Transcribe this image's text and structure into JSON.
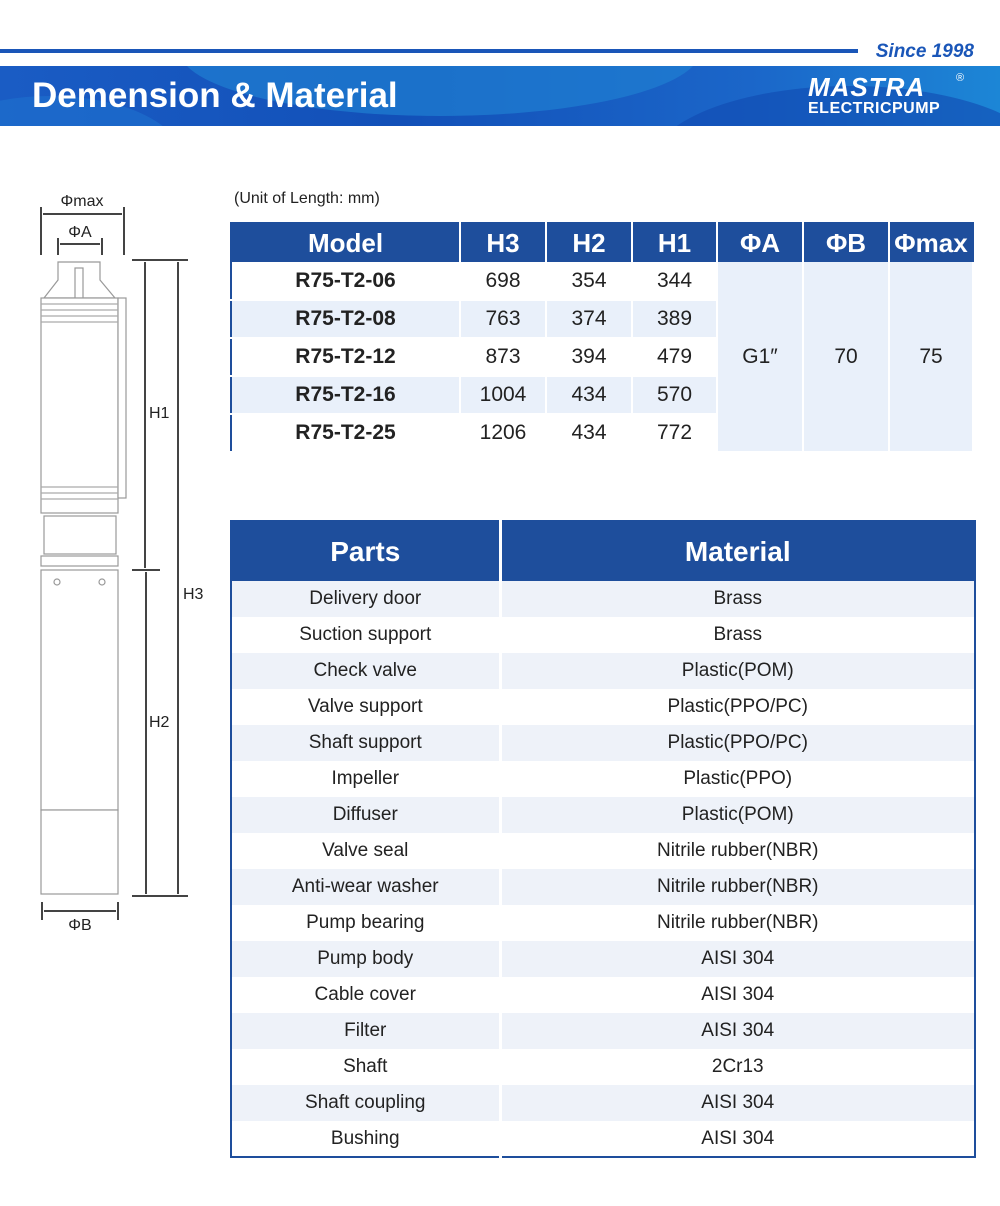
{
  "header": {
    "since": "Since 1998",
    "title": "Demension & Material",
    "brand_mark": "MASTRA",
    "brand_sub": "ELECTRICPUMP",
    "brand_reg": "®",
    "accent": "#1e4e9c"
  },
  "drawing": {
    "phi_max": "Φmax",
    "phi_a": "ΦA",
    "phi_b": "ΦB",
    "h1": "H1",
    "h2": "H2",
    "h3": "H3"
  },
  "dimensions": {
    "unit_note": "(Unit of Length: mm)",
    "headers": [
      "Model",
      "H3",
      "H2",
      "H1",
      "ΦA",
      "ΦB",
      "Φmax"
    ],
    "rows": [
      {
        "model": "R75-T2-06",
        "h3": "698",
        "h2": "354",
        "h1": "344"
      },
      {
        "model": "R75-T2-08",
        "h3": "763",
        "h2": "374",
        "h1": "389"
      },
      {
        "model": "R75-T2-12",
        "h3": "873",
        "h2": "394",
        "h1": "479"
      },
      {
        "model": "R75-T2-16",
        "h3": "1004",
        "h2": "434",
        "h1": "570"
      },
      {
        "model": "R75-T2-25",
        "h3": "1206",
        "h2": "434",
        "h1": "772"
      }
    ],
    "phi_a": "G1″",
    "phi_b": "70",
    "phi_max": "75"
  },
  "materials": {
    "headers": [
      "Parts",
      "Material"
    ],
    "rows": [
      [
        "Delivery door",
        "Brass"
      ],
      [
        "Suction support",
        "Brass"
      ],
      [
        "Check valve",
        "Plastic(POM)"
      ],
      [
        "Valve support",
        "Plastic(PPO/PC)"
      ],
      [
        "Shaft support",
        "Plastic(PPO/PC)"
      ],
      [
        "Impeller",
        "Plastic(PPO)"
      ],
      [
        "Diffuser",
        "Plastic(POM)"
      ],
      [
        "Valve seal",
        "Nitrile rubber(NBR)"
      ],
      [
        "Anti-wear washer",
        "Nitrile rubber(NBR)"
      ],
      [
        "Pump bearing",
        "Nitrile rubber(NBR)"
      ],
      [
        "Pump body",
        "AISI 304"
      ],
      [
        "Cable cover",
        "AISI 304"
      ],
      [
        "Filter",
        "AISI 304"
      ],
      [
        "Shaft",
        "2Cr13"
      ],
      [
        "Shaft coupling",
        "AISI 304"
      ],
      [
        "Bushing",
        "AISI 304"
      ]
    ]
  }
}
